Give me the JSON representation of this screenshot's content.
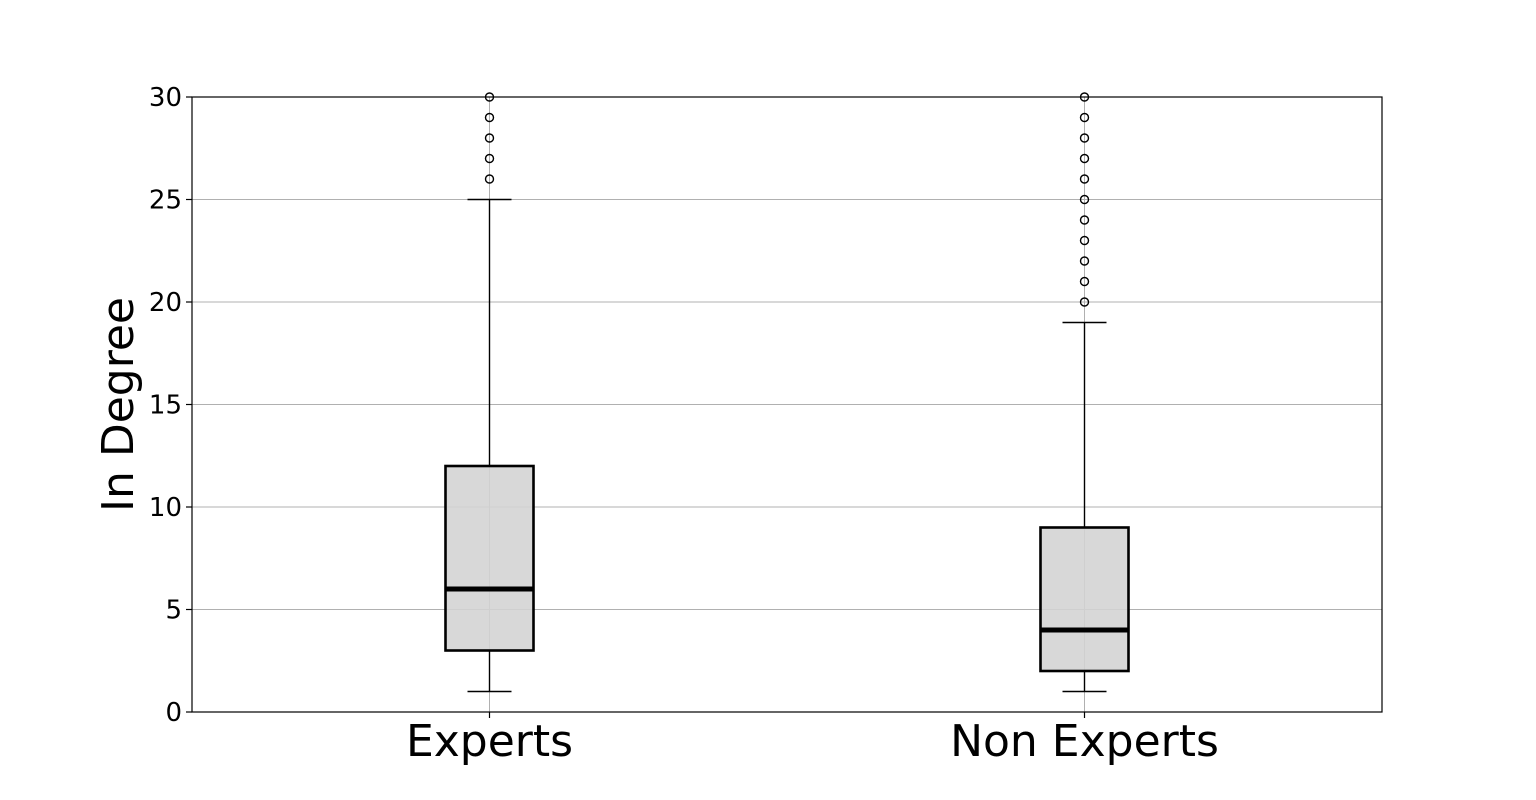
{
  "chart_data": {
    "type": "box",
    "title": "",
    "xlabel": "",
    "ylabel": "In Degree",
    "ylim": [
      0,
      30
    ],
    "yticks": [
      0,
      5,
      10,
      15,
      20,
      25,
      30
    ],
    "grid": "horizontal",
    "categories": [
      "Experts",
      "Non Experts"
    ],
    "boxes": [
      {
        "name": "Experts",
        "whisker_low": 1,
        "q1": 3,
        "median": 6,
        "q3": 12,
        "whisker_high": 25,
        "outliers": [
          26,
          27,
          28,
          29,
          30
        ]
      },
      {
        "name": "Non Experts",
        "whisker_low": 1,
        "q1": 2,
        "median": 4,
        "q3": 9,
        "whisker_high": 19,
        "outliers": [
          20,
          21,
          22,
          23,
          24,
          25,
          26,
          27,
          28,
          29,
          30
        ]
      }
    ],
    "colors": {
      "box_fill": "#d3d3d3",
      "outline": "#000000",
      "grid": "#b0b0b0"
    }
  }
}
